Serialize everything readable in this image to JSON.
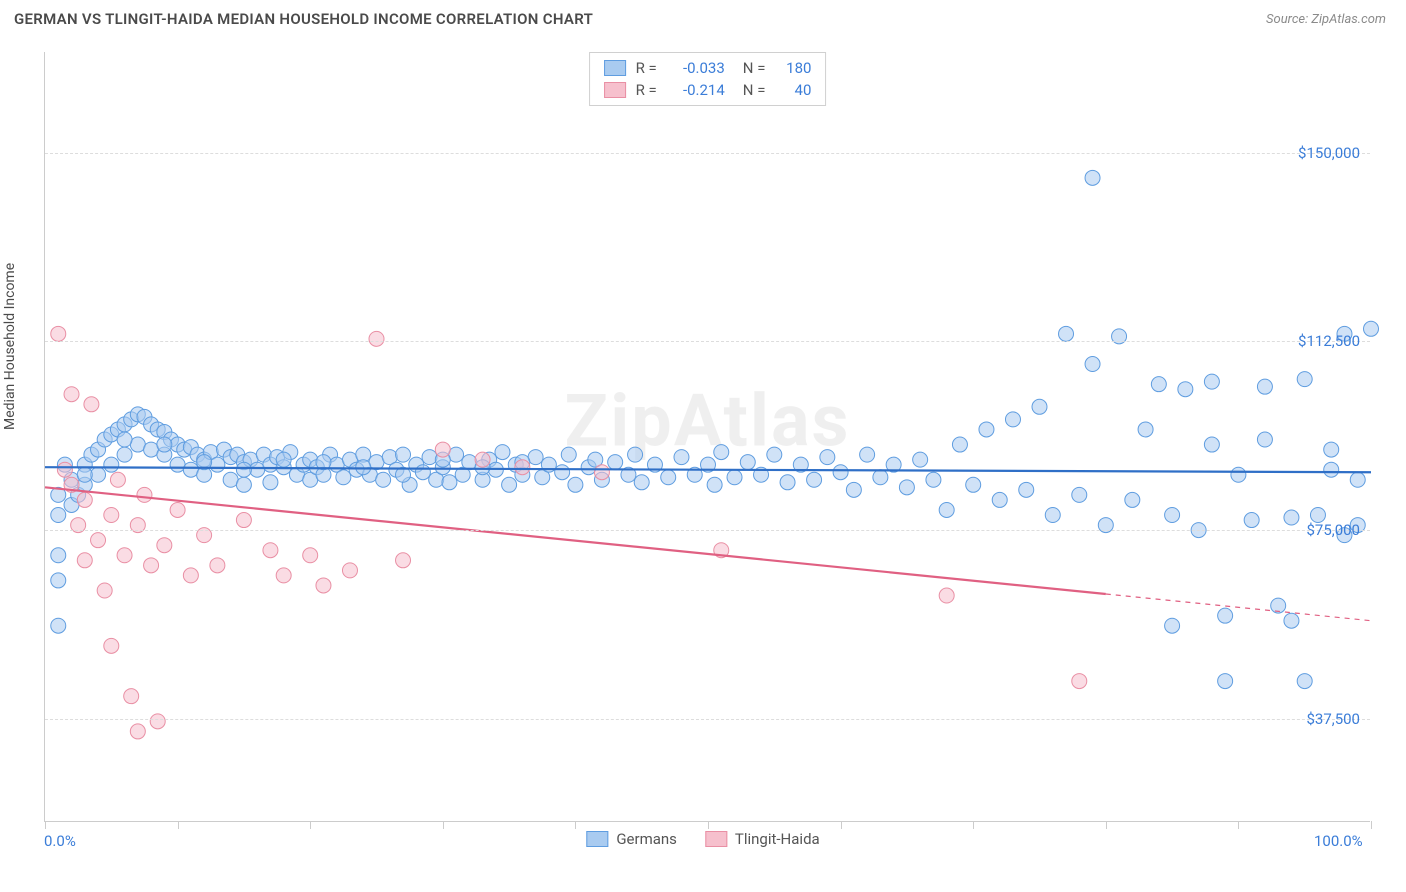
{
  "header": {
    "title": "GERMAN VS TLINGIT-HAIDA MEDIAN HOUSEHOLD INCOME CORRELATION CHART",
    "source": "Source: ZipAtlas.com"
  },
  "watermark": "ZipAtlas",
  "chart": {
    "type": "scatter",
    "ylabel": "Median Household Income",
    "xlim": [
      0,
      100
    ],
    "ylim": [
      17000,
      170000
    ],
    "yticks": [
      {
        "v": 37500,
        "label": "$37,500"
      },
      {
        "v": 75000,
        "label": "$75,000"
      },
      {
        "v": 112500,
        "label": "$112,500"
      },
      {
        "v": 150000,
        "label": "$150,000"
      }
    ],
    "xticks_major": [
      0,
      10,
      20,
      30,
      40,
      50,
      60,
      70,
      80,
      90,
      100
    ],
    "xaxis_labels": [
      {
        "v": 0,
        "label": "0.0%"
      },
      {
        "v": 100,
        "label": "100.0%"
      }
    ],
    "grid_color": "#dddddd",
    "axis_color": "#cccccc",
    "background_color": "#ffffff",
    "tick_label_color": "#3b7dd8",
    "marker_radius": 7.5,
    "marker_stroke_width": 1,
    "trend_line_width": 2.2,
    "series": [
      {
        "name": "Germans",
        "fill": "#a9cbf0",
        "stroke": "#5f9de0",
        "fill_opacity": 0.55,
        "trend_color": "#2f6fc7",
        "R": "-0.033",
        "N": "180",
        "trend": {
          "x1": 0,
          "y1": 87500,
          "x2": 100,
          "y2": 86500,
          "solid_to_x": 100
        },
        "points": [
          [
            1,
            82000
          ],
          [
            1,
            78000
          ],
          [
            1,
            70000
          ],
          [
            1,
            65000
          ],
          [
            1,
            56000
          ],
          [
            1.5,
            88000
          ],
          [
            2,
            85000
          ],
          [
            2,
            80000
          ],
          [
            2.5,
            82000
          ],
          [
            3,
            88000
          ],
          [
            3,
            84000
          ],
          [
            3.5,
            90000
          ],
          [
            4,
            91000
          ],
          [
            4,
            86000
          ],
          [
            4.5,
            93000
          ],
          [
            5,
            94000
          ],
          [
            5,
            88000
          ],
          [
            5.5,
            95000
          ],
          [
            6,
            96000
          ],
          [
            6,
            90000
          ],
          [
            6.5,
            97000
          ],
          [
            7,
            98000
          ],
          [
            7,
            92000
          ],
          [
            7.5,
            97500
          ],
          [
            8,
            96000
          ],
          [
            8,
            91000
          ],
          [
            8.5,
            95000
          ],
          [
            9,
            94500
          ],
          [
            9,
            90000
          ],
          [
            9.5,
            93000
          ],
          [
            10,
            92000
          ],
          [
            10,
            88000
          ],
          [
            10.5,
            91000
          ],
          [
            11,
            91500
          ],
          [
            11,
            87000
          ],
          [
            11.5,
            90000
          ],
          [
            12,
            89000
          ],
          [
            12,
            86000
          ],
          [
            12.5,
            90500
          ],
          [
            13,
            88000
          ],
          [
            13.5,
            91000
          ],
          [
            14,
            89500
          ],
          [
            14,
            85000
          ],
          [
            14.5,
            90000
          ],
          [
            15,
            88500
          ],
          [
            15,
            84000
          ],
          [
            15.5,
            89000
          ],
          [
            16,
            87000
          ],
          [
            16.5,
            90000
          ],
          [
            17,
            88000
          ],
          [
            17,
            84500
          ],
          [
            17.5,
            89500
          ],
          [
            18,
            87500
          ],
          [
            18.5,
            90500
          ],
          [
            19,
            86000
          ],
          [
            19.5,
            88000
          ],
          [
            20,
            89000
          ],
          [
            20,
            85000
          ],
          [
            20.5,
            87500
          ],
          [
            21,
            86000
          ],
          [
            21.5,
            90000
          ],
          [
            22,
            88000
          ],
          [
            22.5,
            85500
          ],
          [
            23,
            89000
          ],
          [
            23.5,
            87000
          ],
          [
            24,
            90000
          ],
          [
            24.5,
            86000
          ],
          [
            25,
            88500
          ],
          [
            25.5,
            85000
          ],
          [
            26,
            89500
          ],
          [
            26.5,
            87000
          ],
          [
            27,
            90000
          ],
          [
            27.5,
            84000
          ],
          [
            28,
            88000
          ],
          [
            28.5,
            86500
          ],
          [
            29,
            89500
          ],
          [
            29.5,
            85000
          ],
          [
            30,
            87500
          ],
          [
            30.5,
            84500
          ],
          [
            31,
            90000
          ],
          [
            31.5,
            86000
          ],
          [
            32,
            88500
          ],
          [
            33,
            85000
          ],
          [
            33.5,
            89000
          ],
          [
            34,
            87000
          ],
          [
            34.5,
            90500
          ],
          [
            35,
            84000
          ],
          [
            35.5,
            88000
          ],
          [
            36,
            86000
          ],
          [
            37,
            89500
          ],
          [
            37.5,
            85500
          ],
          [
            38,
            88000
          ],
          [
            39,
            86500
          ],
          [
            39.5,
            90000
          ],
          [
            40,
            84000
          ],
          [
            41,
            87500
          ],
          [
            41.5,
            89000
          ],
          [
            42,
            85000
          ],
          [
            43,
            88500
          ],
          [
            44,
            86000
          ],
          [
            44.5,
            90000
          ],
          [
            45,
            84500
          ],
          [
            46,
            88000
          ],
          [
            47,
            85500
          ],
          [
            48,
            89500
          ],
          [
            49,
            86000
          ],
          [
            50,
            88000
          ],
          [
            50.5,
            84000
          ],
          [
            51,
            90500
          ],
          [
            52,
            85500
          ],
          [
            53,
            88500
          ],
          [
            54,
            86000
          ],
          [
            55,
            90000
          ],
          [
            56,
            84500
          ],
          [
            57,
            88000
          ],
          [
            58,
            85000
          ],
          [
            59,
            89500
          ],
          [
            60,
            86500
          ],
          [
            61,
            83000
          ],
          [
            62,
            90000
          ],
          [
            63,
            85500
          ],
          [
            64,
            88000
          ],
          [
            65,
            83500
          ],
          [
            66,
            89000
          ],
          [
            67,
            85000
          ],
          [
            68,
            79000
          ],
          [
            69,
            92000
          ],
          [
            70,
            84000
          ],
          [
            71,
            95000
          ],
          [
            72,
            81000
          ],
          [
            73,
            97000
          ],
          [
            74,
            83000
          ],
          [
            75,
            99500
          ],
          [
            76,
            78000
          ],
          [
            77,
            114000
          ],
          [
            78,
            82000
          ],
          [
            79,
            108000
          ],
          [
            79,
            145000
          ],
          [
            80,
            76000
          ],
          [
            81,
            113500
          ],
          [
            82,
            81000
          ],
          [
            83,
            95000
          ],
          [
            84,
            104000
          ],
          [
            85,
            78000
          ],
          [
            85,
            56000
          ],
          [
            86,
            103000
          ],
          [
            87,
            75000
          ],
          [
            88,
            104500
          ],
          [
            88,
            92000
          ],
          [
            89,
            58000
          ],
          [
            89,
            45000
          ],
          [
            90,
            86000
          ],
          [
            91,
            77000
          ],
          [
            92,
            103500
          ],
          [
            92,
            93000
          ],
          [
            93,
            60000
          ],
          [
            94,
            77500
          ],
          [
            94,
            57000
          ],
          [
            95,
            105000
          ],
          [
            95,
            45000
          ],
          [
            96,
            78000
          ],
          [
            97,
            87000
          ],
          [
            97,
            91000
          ],
          [
            98,
            114000
          ],
          [
            98,
            74000
          ],
          [
            99,
            85000
          ],
          [
            99,
            76000
          ],
          [
            100,
            115000
          ],
          [
            3,
            86000
          ],
          [
            6,
            93000
          ],
          [
            9,
            92000
          ],
          [
            12,
            88500
          ],
          [
            15,
            87000
          ],
          [
            18,
            89000
          ],
          [
            21,
            88500
          ],
          [
            24,
            87500
          ],
          [
            27,
            86000
          ],
          [
            30,
            89000
          ],
          [
            33,
            87500
          ],
          [
            36,
            88500
          ]
        ]
      },
      {
        "name": "Tlingit-Haida",
        "fill": "#f6c0cd",
        "stroke": "#e98fa4",
        "fill_opacity": 0.55,
        "trend_color": "#e06082",
        "R": "-0.214",
        "N": "40",
        "trend": {
          "x1": 0,
          "y1": 83500,
          "x2": 100,
          "y2": 57000,
          "solid_to_x": 80
        },
        "points": [
          [
            1,
            114000
          ],
          [
            1.5,
            87000
          ],
          [
            2,
            102000
          ],
          [
            2,
            84000
          ],
          [
            2.5,
            76000
          ],
          [
            3,
            69000
          ],
          [
            3,
            81000
          ],
          [
            3.5,
            100000
          ],
          [
            4,
            73000
          ],
          [
            4.5,
            63000
          ],
          [
            5,
            78000
          ],
          [
            5,
            52000
          ],
          [
            5.5,
            85000
          ],
          [
            6,
            70000
          ],
          [
            6.5,
            42000
          ],
          [
            7,
            76000
          ],
          [
            7,
            35000
          ],
          [
            7.5,
            82000
          ],
          [
            8,
            68000
          ],
          [
            8.5,
            37000
          ],
          [
            9,
            72000
          ],
          [
            10,
            79000
          ],
          [
            11,
            66000
          ],
          [
            12,
            74000
          ],
          [
            13,
            68000
          ],
          [
            15,
            77000
          ],
          [
            17,
            71000
          ],
          [
            18,
            66000
          ],
          [
            20,
            70000
          ],
          [
            21,
            64000
          ],
          [
            23,
            67000
          ],
          [
            25,
            113000
          ],
          [
            27,
            69000
          ],
          [
            30,
            91000
          ],
          [
            33,
            89000
          ],
          [
            36,
            87500
          ],
          [
            42,
            86500
          ],
          [
            51,
            71000
          ],
          [
            68,
            62000
          ],
          [
            78,
            45000
          ]
        ]
      }
    ]
  },
  "legend_bottom": [
    {
      "label": "Germans",
      "fill": "#a9cbf0",
      "stroke": "#5f9de0"
    },
    {
      "label": "Tlingit-Haida",
      "fill": "#f6c0cd",
      "stroke": "#e98fa4"
    }
  ]
}
